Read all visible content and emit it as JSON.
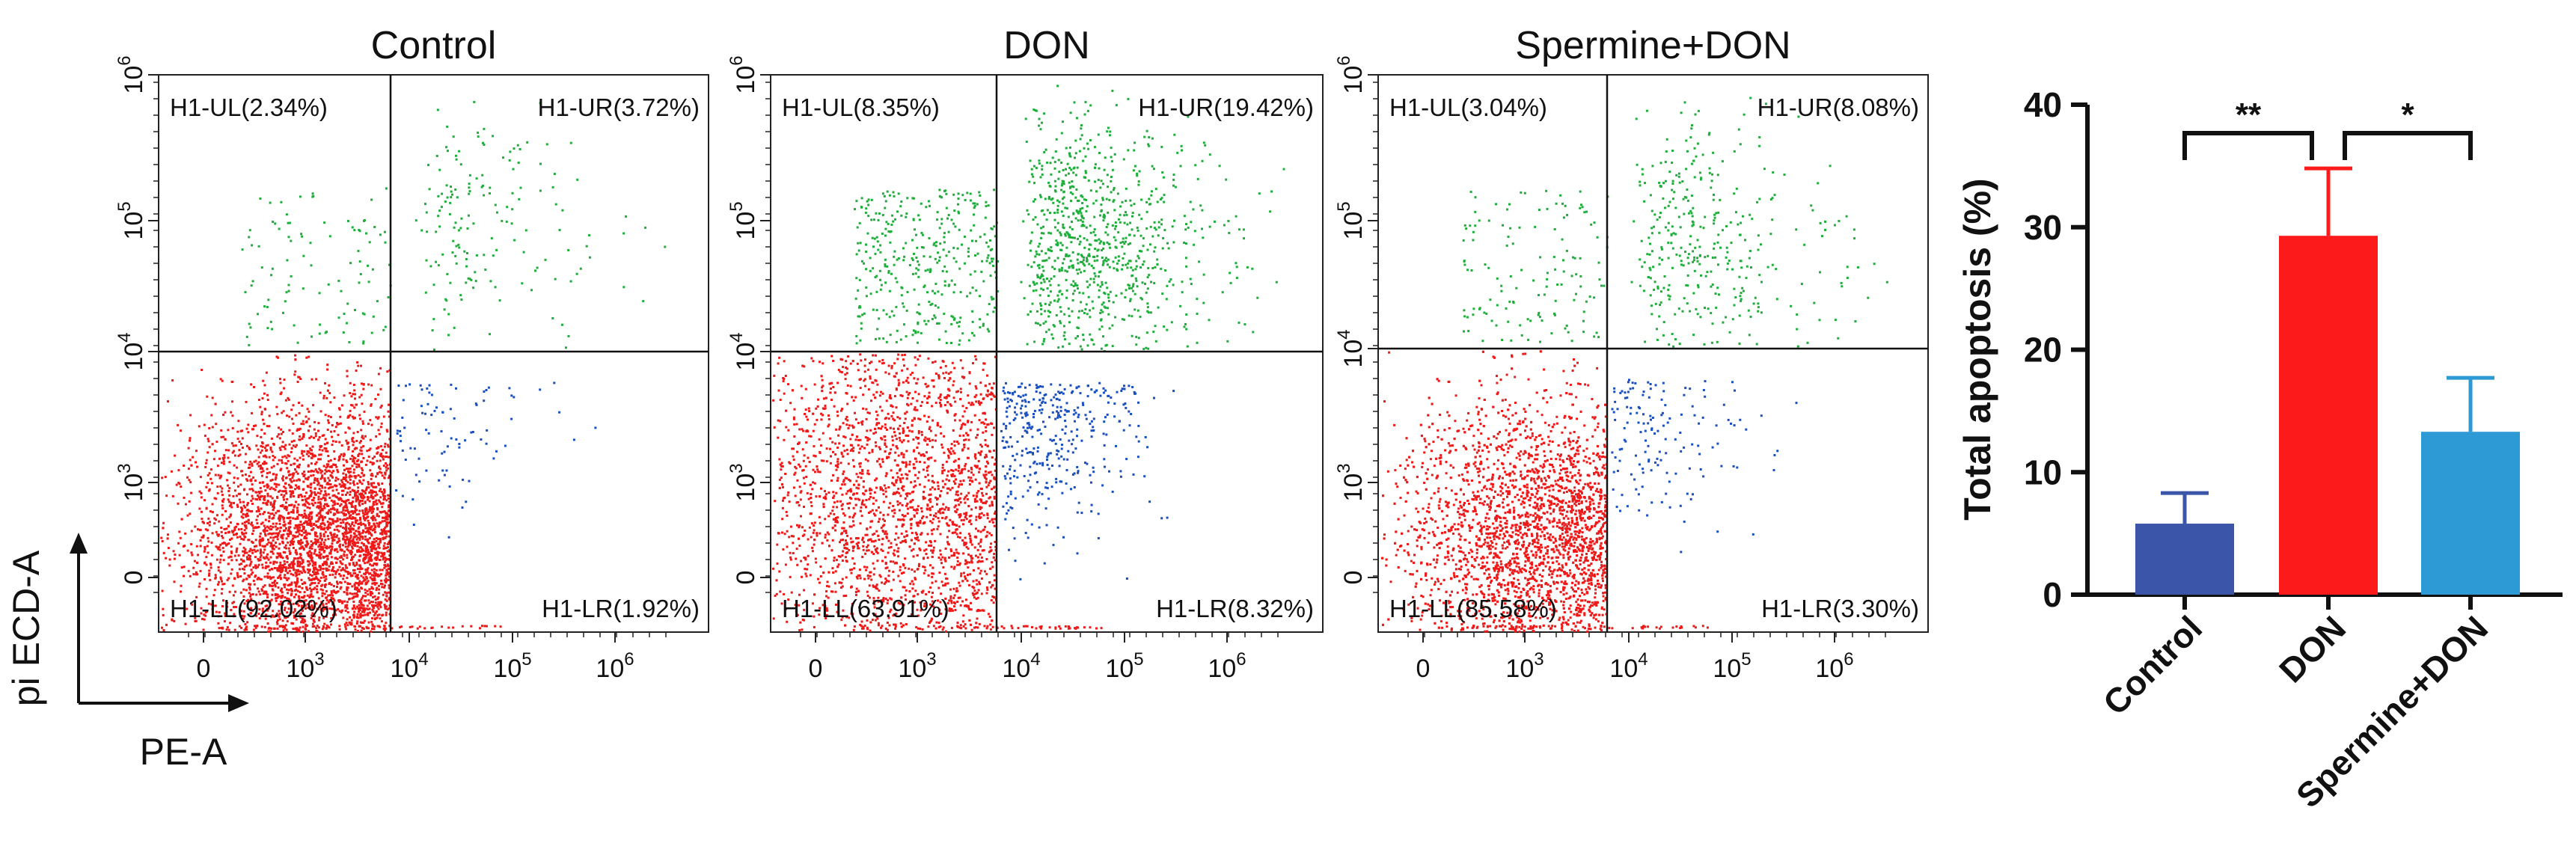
{
  "flow_axes": {
    "y_title": "pi ECD-A",
    "x_title": "PE-A",
    "x_ticks": [
      "0",
      "10",
      "10",
      "10",
      "10"
    ],
    "x_tick_exps": [
      "",
      "3",
      "4",
      "5",
      "6"
    ],
    "y_ticks": [
      "0",
      "10",
      "10",
      "10",
      "10"
    ],
    "y_tick_exps": [
      "",
      "3",
      "4",
      "5",
      "6"
    ]
  },
  "colors": {
    "ll": "#ee1a1a",
    "ur": "#1fae3c",
    "lr": "#1a4fc0",
    "bar_control": "#3b56a8",
    "bar_don": "#fc1a1a",
    "bar_spermine": "#2d9ad6"
  },
  "panels": [
    {
      "title": "Control",
      "quadrants": {
        "ul": "H1-UL(2.34%)",
        "ur": "H1-UR(3.72%)",
        "ll": "H1-LL(92.02%)",
        "lr": "H1-LR(1.92%)"
      },
      "percent": {
        "ul": 2.34,
        "ur": 3.72,
        "ll": 92.02,
        "lr": 1.92
      }
    },
    {
      "title": "DON",
      "quadrants": {
        "ul": "H1-UL(8.35%)",
        "ur": "H1-UR(19.42%)",
        "ll": "H1-LL(63.91%)",
        "lr": "H1-LR(8.32%)"
      },
      "percent": {
        "ul": 8.35,
        "ur": 19.42,
        "ll": 63.91,
        "lr": 8.32
      }
    },
    {
      "title": "Spermine+DON",
      "quadrants": {
        "ul": "H1-UL(3.04%)",
        "ur": "H1-UR(8.08%)",
        "ll": "H1-LL(85.58%)",
        "lr": "H1-LR(3.30%)"
      },
      "percent": {
        "ul": 3.04,
        "ur": 8.08,
        "ll": 85.58,
        "lr": 3.3
      }
    }
  ],
  "chart_data": {
    "type": "bar",
    "title": "",
    "xlabel": "",
    "ylabel": "Total apoptosis (%)",
    "ylim": [
      0,
      40
    ],
    "yticks": [
      0,
      10,
      20,
      30,
      40
    ],
    "categories": [
      "Control",
      "DON",
      "Spermine+DON"
    ],
    "values": [
      5.8,
      29.3,
      13.3
    ],
    "errors": [
      2.5,
      5.5,
      4.4
    ],
    "significance": [
      {
        "from": 0,
        "to": 1,
        "label": "**"
      },
      {
        "from": 1,
        "to": 2,
        "label": "*"
      }
    ]
  }
}
